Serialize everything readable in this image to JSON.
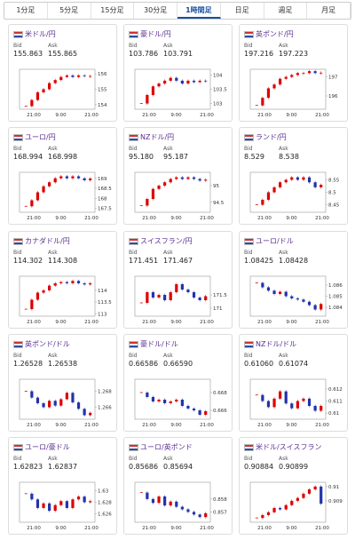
{
  "tabs": [
    "1分足",
    "5分足",
    "15分足",
    "30分足",
    "1時間足",
    "日足",
    "週足",
    "月足"
  ],
  "active_tab": 4,
  "labels": {
    "bid": "Bid",
    "ask": "Ask"
  },
  "xlabels": [
    "21:00",
    "9:00",
    "21:00"
  ],
  "cards": [
    {
      "name": "米ドル/円",
      "bid": "155.863",
      "ask": "155.865",
      "yticks": [
        156,
        155,
        154
      ],
      "ylim": [
        153.7,
        156.3
      ],
      "closes": [
        153.9,
        154.3,
        154.8,
        155.0,
        155.4,
        155.6,
        155.8,
        155.9,
        155.8,
        155.9,
        155.85,
        155.86
      ]
    },
    {
      "name": "豪ドル/円",
      "bid": "103.786",
      "ask": "103.791",
      "yticks": [
        104,
        103.5,
        103
      ],
      "ylim": [
        102.8,
        104.2
      ],
      "closes": [
        103.0,
        103.3,
        103.6,
        103.7,
        103.8,
        103.9,
        103.8,
        103.7,
        103.8,
        103.75,
        103.8,
        103.79
      ]
    },
    {
      "name": "英ポンド/円",
      "bid": "197.216",
      "ask": "197.223",
      "yticks": [
        197,
        196
      ],
      "ylim": [
        195.3,
        197.4
      ],
      "closes": [
        195.5,
        195.9,
        196.4,
        196.6,
        196.9,
        197.0,
        197.1,
        197.2,
        197.2,
        197.3,
        197.2,
        197.22
      ]
    },
    {
      "name": "ユーロ/円",
      "bid": "168.994",
      "ask": "168.998",
      "yticks": [
        169,
        168.5,
        168,
        167.5
      ],
      "ylim": [
        167.3,
        169.3
      ],
      "closes": [
        167.6,
        167.9,
        168.3,
        168.6,
        168.8,
        169.0,
        169.1,
        169.0,
        169.1,
        169.0,
        168.9,
        168.99
      ]
    },
    {
      "name": "NZドル/円",
      "bid": "95.180",
      "ask": "95.187",
      "yticks": [
        95,
        94.5
      ],
      "ylim": [
        94.2,
        95.4
      ],
      "closes": [
        94.4,
        94.6,
        94.9,
        95.0,
        95.1,
        95.2,
        95.25,
        95.2,
        95.25,
        95.2,
        95.15,
        95.18
      ]
    },
    {
      "name": "ランド/円",
      "bid": "8.529",
      "ask": "8.538",
      "yticks": [
        8.55,
        8.5,
        8.45
      ],
      "ylim": [
        8.42,
        8.58
      ],
      "closes": [
        8.45,
        8.47,
        8.5,
        8.52,
        8.54,
        8.55,
        8.56,
        8.55,
        8.56,
        8.54,
        8.52,
        8.53
      ]
    },
    {
      "name": "カナダドル/円",
      "bid": "114.302",
      "ask": "114.308",
      "yticks": [
        114,
        113.5,
        113
      ],
      "ylim": [
        112.9,
        114.6
      ],
      "closes": [
        113.2,
        113.6,
        113.9,
        114.0,
        114.2,
        114.3,
        114.35,
        114.3,
        114.4,
        114.3,
        114.25,
        114.3
      ]
    },
    {
      "name": "スイスフラン/円",
      "bid": "171.451",
      "ask": "171.467",
      "yticks": [
        171.5,
        171
      ],
      "ylim": [
        170.7,
        172.2
      ],
      "closes": [
        171.2,
        171.6,
        171.4,
        171.5,
        171.3,
        171.6,
        171.9,
        171.7,
        171.6,
        171.4,
        171.3,
        171.45
      ]
    },
    {
      "name": "ユーロ/ドル",
      "bid": "1.08425",
      "ask": "1.08428",
      "yticks": [
        1.086,
        1.085,
        1.084
      ],
      "ylim": [
        1.0832,
        1.0868
      ],
      "closes": [
        1.0862,
        1.0858,
        1.0855,
        1.0852,
        1.0854,
        1.085,
        1.0848,
        1.0847,
        1.0845,
        1.0842,
        1.0838,
        1.0843
      ]
    },
    {
      "name": "英ポンド/ドル",
      "bid": "1.26528",
      "ask": "1.26538",
      "yticks": [
        1.268,
        1.266
      ],
      "ylim": [
        1.2645,
        1.2695
      ],
      "closes": [
        1.268,
        1.2672,
        1.2665,
        1.266,
        1.2668,
        1.2662,
        1.267,
        1.2678,
        1.2666,
        1.2658,
        1.265,
        1.2653
      ]
    },
    {
      "name": "豪ドル/ドル",
      "bid": "0.66586",
      "ask": "0.66590",
      "yticks": [
        0.668,
        0.666
      ],
      "ylim": [
        0.665,
        0.6695
      ],
      "closes": [
        0.668,
        0.6675,
        0.667,
        0.6672,
        0.6668,
        0.667,
        0.6672,
        0.6665,
        0.6662,
        0.666,
        0.6655,
        0.6659
      ]
    },
    {
      "name": "NZドル/ドル",
      "bid": "0.61060",
      "ask": "0.61074",
      "yticks": [
        0.612,
        0.611,
        0.61
      ],
      "ylim": [
        0.6095,
        0.6128
      ],
      "closes": [
        0.6115,
        0.611,
        0.6105,
        0.6112,
        0.6118,
        0.6108,
        0.6104,
        0.611,
        0.6112,
        0.6106,
        0.6102,
        0.6106
      ]
    },
    {
      "name": "ユーロ/豪ドル",
      "bid": "1.62823",
      "ask": "1.62837",
      "yticks": [
        1.63,
        1.628,
        1.626
      ],
      "ylim": [
        1.6245,
        1.6315
      ],
      "closes": [
        1.6295,
        1.6285,
        1.627,
        1.6278,
        1.6265,
        1.6275,
        1.6282,
        1.627,
        1.6285,
        1.629,
        1.628,
        1.6282
      ]
    },
    {
      "name": "ユーロ/英ポンド",
      "bid": "0.85686",
      "ask": "0.85694",
      "yticks": [
        0.858,
        0.857
      ],
      "ylim": [
        0.8562,
        0.8593
      ],
      "closes": [
        0.8585,
        0.858,
        0.8577,
        0.8582,
        0.8575,
        0.8578,
        0.8574,
        0.8572,
        0.857,
        0.8568,
        0.8566,
        0.8569
      ]
    },
    {
      "name": "米ドル/スイスフラン",
      "bid": "0.90884",
      "ask": "0.90899",
      "yticks": [
        0.91,
        0.909
      ],
      "ylim": [
        0.9075,
        0.9103
      ],
      "closes": [
        0.9078,
        0.908,
        0.9082,
        0.9085,
        0.9084,
        0.9087,
        0.909,
        0.9092,
        0.9095,
        0.9098,
        0.91,
        0.9088
      ]
    }
  ]
}
